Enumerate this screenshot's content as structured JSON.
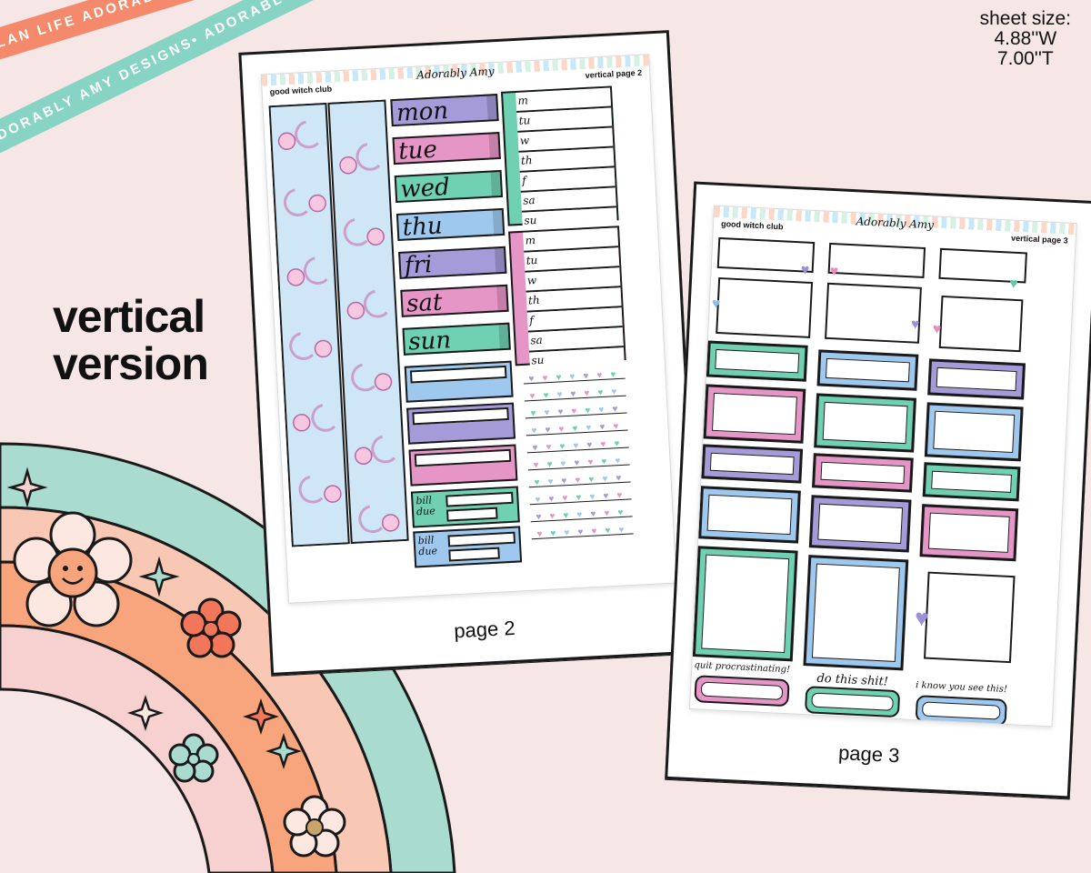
{
  "ribbons": {
    "top": "PLAN LIFE ADORABLY • PLAN LIFE ADORABLY • PLAN LIFE ADORABLY",
    "bottom": "ADORABLY AMY DESIGNS• ADORABLY AMY DESIGNS• ADORABLY AMY DESIGNS"
  },
  "sheet_size": {
    "line1": "sheet size:",
    "line2": "4.88''W",
    "line3": "7.00''T"
  },
  "headline": {
    "line1": "vertical",
    "line2": "version"
  },
  "page2": {
    "club": "good witch club",
    "logo": "Adorably Amy",
    "title": "vertical page 2",
    "days": [
      "mon",
      "tue",
      "wed",
      "thu",
      "fri",
      "sat",
      "sun"
    ],
    "week_short": [
      "m",
      "tu",
      "w",
      "th",
      "f",
      "sa",
      "su"
    ],
    "bill_label": "bill due",
    "label": "page 2"
  },
  "page3": {
    "club": "good witch club",
    "logo": "Adorably Amy",
    "title": "vertical page 3",
    "captions": [
      "quit procrastinating!",
      "do this shit!",
      "i know you see this!"
    ],
    "label": "page 3"
  },
  "colors": {
    "purple": "#a49bd8",
    "pink": "#e696c6",
    "teal": "#6fd0b2",
    "blue": "#9ec8ee",
    "coral": "#f48a6b",
    "mint": "#87d3c4"
  }
}
